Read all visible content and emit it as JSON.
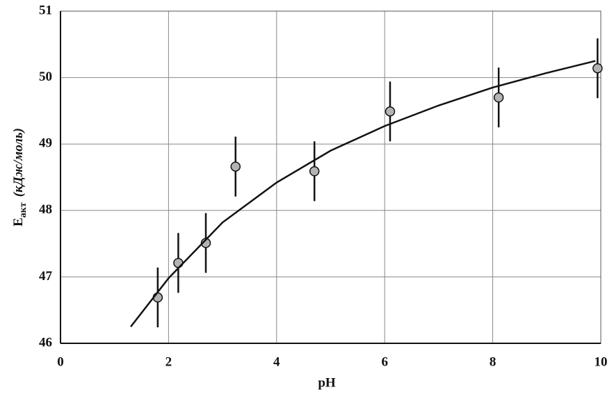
{
  "chart_data": {
    "type": "scatter",
    "x_label": "pH",
    "y_label": {
      "symbol": "E",
      "subscript": "акт",
      "unit": "(кДж/моль)"
    },
    "xlim": [
      0,
      10
    ],
    "xticks": [
      0,
      2,
      4,
      6,
      8,
      10
    ],
    "ylim": [
      46,
      51
    ],
    "yticks": [
      46,
      47,
      48,
      49,
      50,
      51
    ],
    "grid": true,
    "series": [
      {
        "type": "scatter",
        "color": "#b3b3b3",
        "x": [
          1.8,
          2.18,
          2.69,
          3.24,
          4.7,
          6.1,
          8.11,
          9.94
        ],
        "values": [
          46.69,
          47.21,
          47.51,
          48.66,
          48.59,
          49.49,
          49.7,
          50.14
        ],
        "errors": [
          0.45,
          0.45,
          0.45,
          0.45,
          0.45,
          0.45,
          0.45,
          0.45
        ]
      },
      {
        "type": "line",
        "color": "#111111",
        "x": [
          1.3,
          2,
          3,
          4,
          5,
          6,
          7,
          8,
          9,
          9.9
        ],
        "values": [
          46.25,
          46.98,
          47.82,
          48.42,
          48.9,
          49.27,
          49.58,
          49.85,
          50.07,
          50.25
        ]
      }
    ]
  }
}
